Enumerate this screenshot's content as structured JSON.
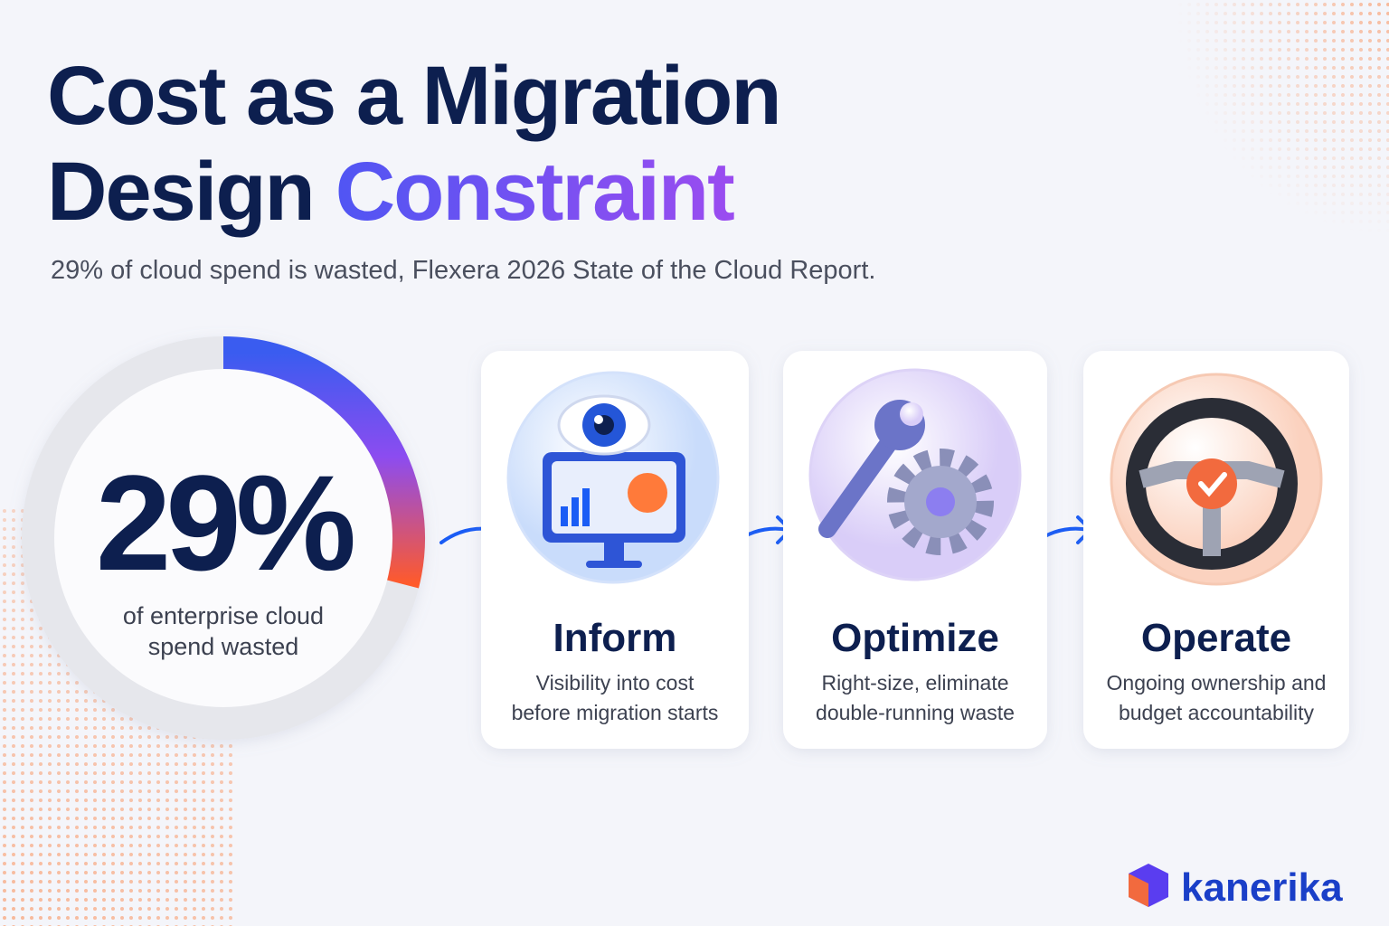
{
  "title": {
    "line1": "Cost as a Migration",
    "line2_start": "Design",
    "highlight": "Constraint"
  },
  "subtitle": "29% of cloud spend is wasted, Flexera 2026 State of the Cloud Report.",
  "stat": {
    "value": 29,
    "label": "29%",
    "caption": [
      "of enterprise cloud",
      "spend wasted"
    ]
  },
  "steps": [
    {
      "title": "Inform",
      "description": [
        "Visibility into cost",
        "before migration starts"
      ]
    },
    {
      "title": "Optimize",
      "description": [
        "Right-size, eliminate",
        "double-running waste"
      ]
    },
    {
      "title": "Operate",
      "description": [
        "Ongoing ownership and",
        "budget accountability"
      ]
    }
  ],
  "logo": "kanerika"
}
